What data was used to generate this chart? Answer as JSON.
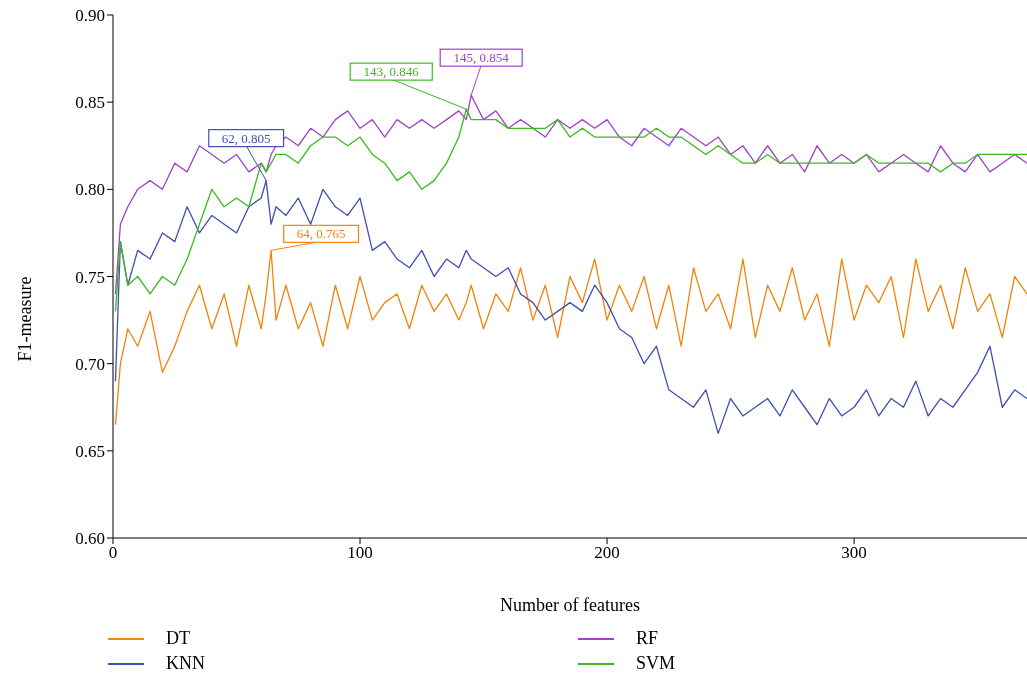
{
  "chart_data": {
    "type": "line",
    "xlabel": "Number of features",
    "ylabel": "F1-measure",
    "x": [
      1,
      3,
      6,
      10,
      15,
      20,
      25,
      30,
      35,
      40,
      45,
      50,
      55,
      60,
      62,
      64,
      66,
      70,
      75,
      80,
      85,
      90,
      95,
      100,
      105,
      110,
      115,
      120,
      125,
      130,
      135,
      140,
      143,
      145,
      150,
      155,
      160,
      165,
      170,
      175,
      180,
      185,
      190,
      195,
      200,
      205,
      210,
      215,
      220,
      225,
      230,
      235,
      240,
      245,
      250,
      255,
      260,
      265,
      270,
      275,
      280,
      285,
      290,
      295,
      300,
      305,
      310,
      315,
      320,
      325,
      330,
      335,
      340,
      345,
      350,
      355,
      360,
      365,
      370
    ],
    "series": [
      {
        "name": "DT",
        "color": "#f5820a",
        "values": [
          0.665,
          0.7,
          0.72,
          0.71,
          0.73,
          0.695,
          0.71,
          0.73,
          0.745,
          0.72,
          0.74,
          0.71,
          0.745,
          0.72,
          0.74,
          0.765,
          0.725,
          0.745,
          0.72,
          0.735,
          0.71,
          0.745,
          0.72,
          0.75,
          0.725,
          0.735,
          0.74,
          0.72,
          0.745,
          0.73,
          0.74,
          0.725,
          0.735,
          0.745,
          0.72,
          0.74,
          0.73,
          0.755,
          0.725,
          0.745,
          0.715,
          0.75,
          0.735,
          0.76,
          0.725,
          0.745,
          0.73,
          0.75,
          0.72,
          0.745,
          0.71,
          0.755,
          0.73,
          0.74,
          0.72,
          0.76,
          0.715,
          0.745,
          0.73,
          0.755,
          0.725,
          0.74,
          0.71,
          0.76,
          0.725,
          0.745,
          0.735,
          0.75,
          0.715,
          0.76,
          0.73,
          0.745,
          0.72,
          0.755,
          0.73,
          0.74,
          0.715,
          0.75,
          0.74
        ]
      },
      {
        "name": "KNN",
        "color": "#3f4fb0",
        "values": [
          0.69,
          0.77,
          0.745,
          0.765,
          0.76,
          0.775,
          0.77,
          0.79,
          0.775,
          0.785,
          0.78,
          0.775,
          0.79,
          0.795,
          0.805,
          0.78,
          0.79,
          0.785,
          0.795,
          0.78,
          0.8,
          0.79,
          0.785,
          0.795,
          0.765,
          0.77,
          0.76,
          0.755,
          0.765,
          0.75,
          0.76,
          0.755,
          0.765,
          0.76,
          0.755,
          0.75,
          0.755,
          0.74,
          0.735,
          0.725,
          0.73,
          0.735,
          0.73,
          0.745,
          0.735,
          0.72,
          0.715,
          0.7,
          0.71,
          0.685,
          0.68,
          0.675,
          0.685,
          0.66,
          0.68,
          0.67,
          0.675,
          0.68,
          0.67,
          0.685,
          0.675,
          0.665,
          0.68,
          0.67,
          0.675,
          0.685,
          0.67,
          0.68,
          0.675,
          0.69,
          0.67,
          0.68,
          0.675,
          0.685,
          0.695,
          0.71,
          0.675,
          0.685,
          0.68
        ]
      },
      {
        "name": "RF",
        "color": "#a043c8",
        "values": [
          0.74,
          0.78,
          0.79,
          0.8,
          0.805,
          0.8,
          0.815,
          0.81,
          0.825,
          0.82,
          0.815,
          0.82,
          0.81,
          0.815,
          0.81,
          0.82,
          0.825,
          0.83,
          0.825,
          0.835,
          0.83,
          0.84,
          0.845,
          0.835,
          0.84,
          0.83,
          0.84,
          0.835,
          0.84,
          0.835,
          0.84,
          0.845,
          0.84,
          0.854,
          0.84,
          0.845,
          0.835,
          0.84,
          0.835,
          0.83,
          0.84,
          0.835,
          0.84,
          0.835,
          0.84,
          0.83,
          0.825,
          0.835,
          0.83,
          0.825,
          0.835,
          0.83,
          0.825,
          0.83,
          0.82,
          0.825,
          0.815,
          0.825,
          0.815,
          0.82,
          0.81,
          0.825,
          0.815,
          0.82,
          0.815,
          0.82,
          0.81,
          0.815,
          0.82,
          0.815,
          0.81,
          0.825,
          0.815,
          0.81,
          0.82,
          0.81,
          0.815,
          0.82,
          0.815
        ]
      },
      {
        "name": "SVM",
        "color": "#3cb91e",
        "values": [
          0.73,
          0.77,
          0.745,
          0.75,
          0.74,
          0.75,
          0.745,
          0.76,
          0.78,
          0.8,
          0.79,
          0.795,
          0.79,
          0.815,
          0.81,
          0.815,
          0.82,
          0.82,
          0.815,
          0.825,
          0.83,
          0.83,
          0.825,
          0.83,
          0.82,
          0.815,
          0.805,
          0.81,
          0.8,
          0.805,
          0.815,
          0.83,
          0.846,
          0.84,
          0.84,
          0.84,
          0.835,
          0.835,
          0.835,
          0.835,
          0.84,
          0.83,
          0.835,
          0.83,
          0.83,
          0.83,
          0.83,
          0.83,
          0.835,
          0.83,
          0.83,
          0.825,
          0.82,
          0.825,
          0.82,
          0.815,
          0.815,
          0.82,
          0.815,
          0.815,
          0.815,
          0.815,
          0.815,
          0.815,
          0.815,
          0.82,
          0.815,
          0.815,
          0.815,
          0.815,
          0.815,
          0.81,
          0.815,
          0.815,
          0.82,
          0.82,
          0.82,
          0.82,
          0.82
        ]
      }
    ],
    "xlim": [
      0,
      370
    ],
    "xticks": [
      0,
      100,
      200,
      300
    ],
    "ylim": [
      0.6,
      0.9
    ],
    "yticks": [
      {
        "value": 0.6,
        "label": "0.60"
      },
      {
        "value": 0.65,
        "label": "0.65"
      },
      {
        "value": 0.7,
        "label": "0.70"
      },
      {
        "value": 0.75,
        "label": "0.75"
      },
      {
        "value": 0.8,
        "label": "0.80"
      },
      {
        "value": 0.85,
        "label": "0.85"
      },
      {
        "value": 0.9,
        "label": "0.90"
      }
    ],
    "annotations": [
      {
        "text": "64, 0.765",
        "x": 64,
        "y": 0.765
      },
      {
        "text": "62, 0.805",
        "x": 62,
        "y": 0.805
      },
      {
        "text": "145, 0.854",
        "x": 145,
        "y": 0.854
      },
      {
        "text": "143, 0.846",
        "x": 143,
        "y": 0.846
      }
    ],
    "grid": false,
    "legend": "bottom",
    "marker": "none",
    "line_style": "solid"
  }
}
